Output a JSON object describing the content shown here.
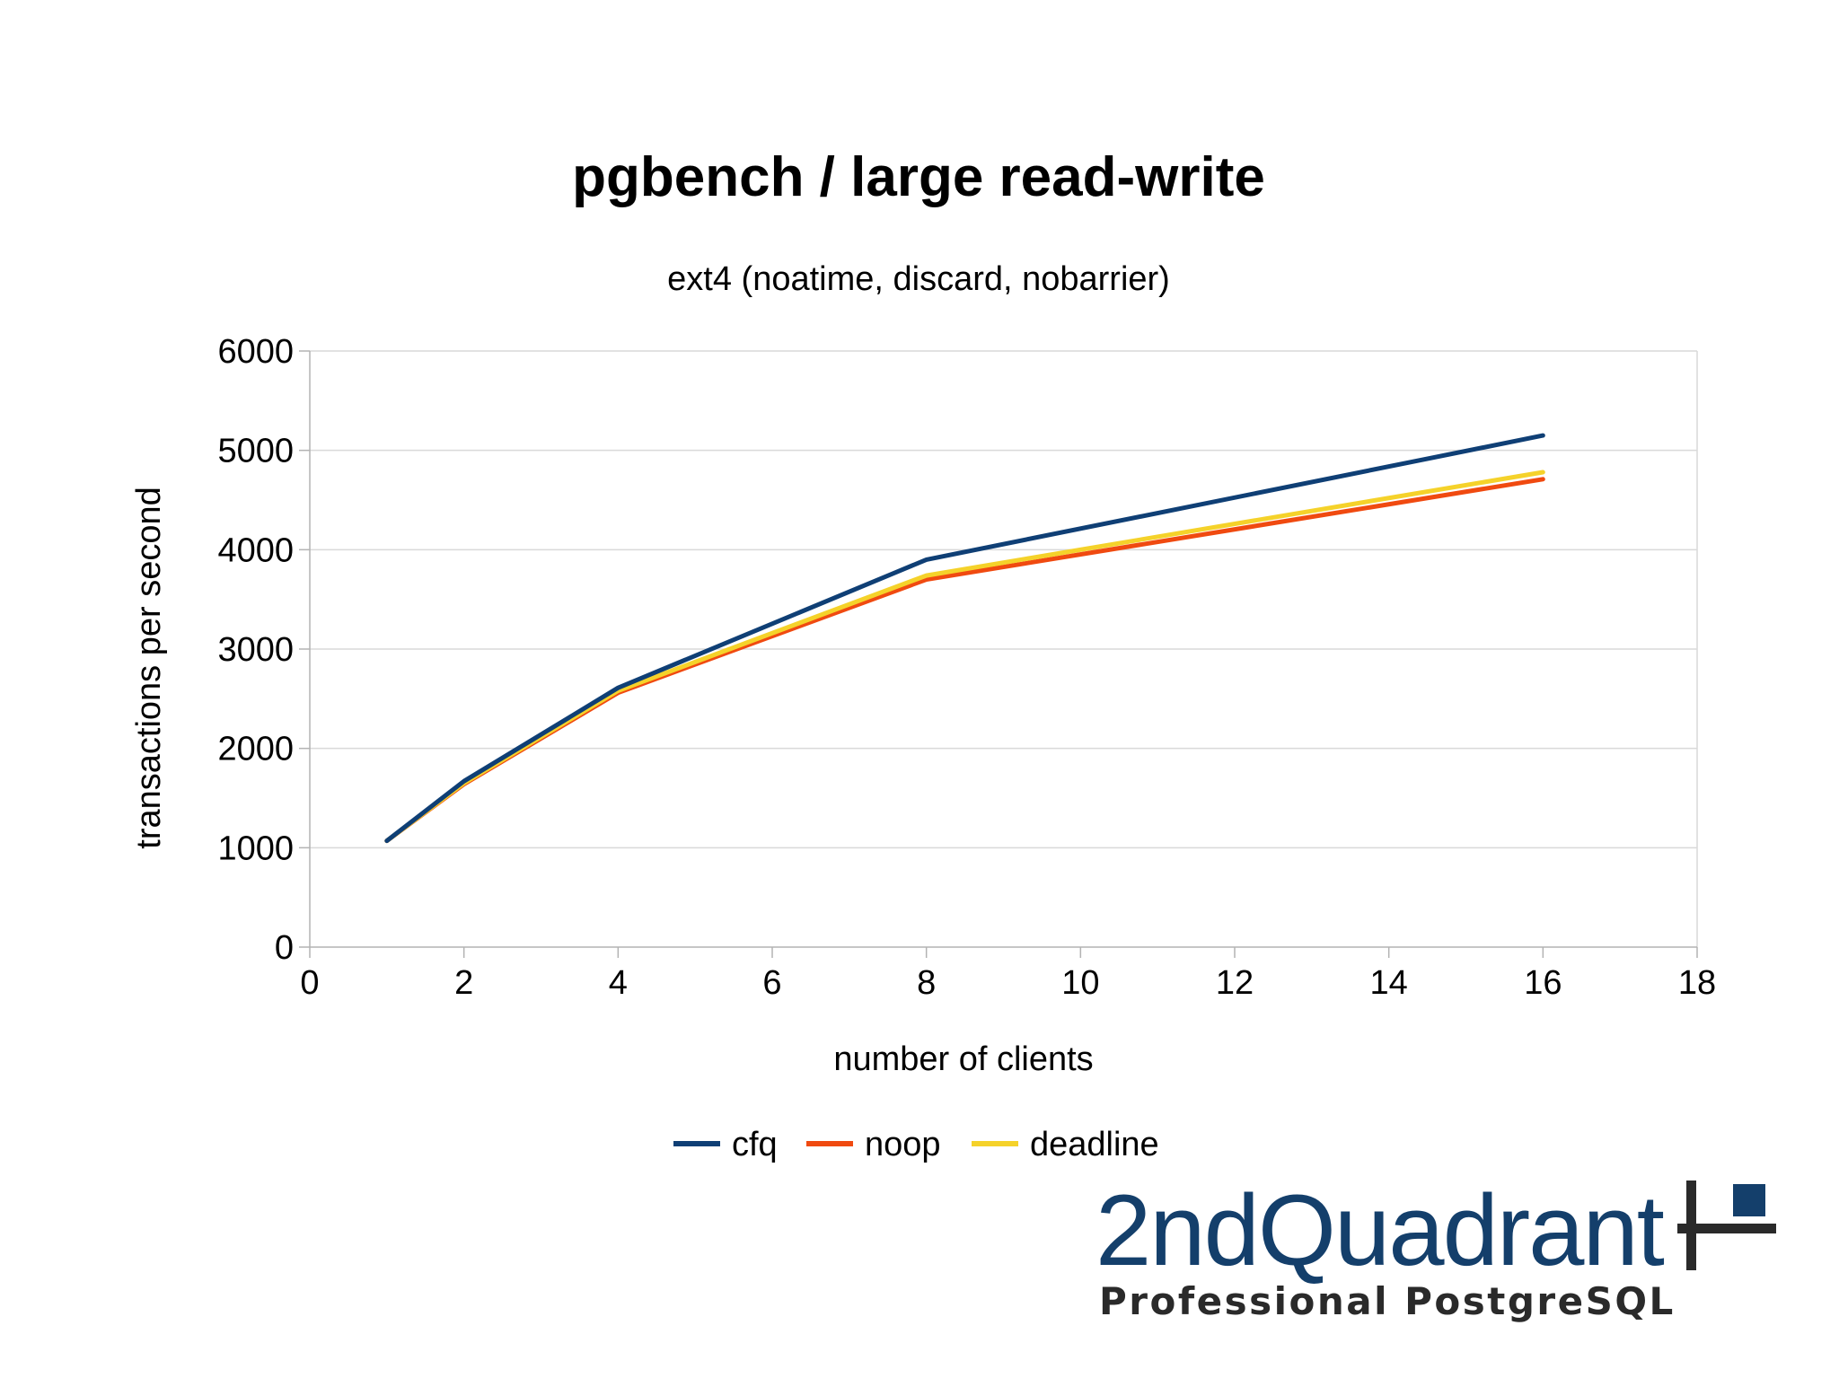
{
  "chart_data": {
    "type": "line",
    "title": "pgbench / large read-write",
    "subtitle": "ext4 (noatime, discard, nobarrier)",
    "xlabel": "number of clients",
    "ylabel": "transactions per second",
    "xlim": [
      0,
      18
    ],
    "ylim": [
      0,
      6000
    ],
    "xticks": [
      0,
      2,
      4,
      6,
      8,
      10,
      12,
      14,
      16,
      18
    ],
    "yticks": [
      0,
      1000,
      2000,
      3000,
      4000,
      5000,
      6000
    ],
    "grid": true,
    "legend_position": "bottom",
    "x": [
      1,
      2,
      4,
      8,
      16
    ],
    "series": [
      {
        "name": "cfq",
        "color": "#0f3f75",
        "values": [
          1070,
          1670,
          2610,
          3900,
          5150
        ]
      },
      {
        "name": "noop",
        "color": "#f04a10",
        "values": [
          1070,
          1640,
          2560,
          3700,
          4710
        ]
      },
      {
        "name": "deadline",
        "color": "#f5d22a",
        "values": [
          1070,
          1650,
          2580,
          3740,
          4780
        ]
      }
    ]
  },
  "logo": {
    "wordmark": "2ndQuadrant",
    "tagline": "Professional PostgreSQL",
    "colors": {
      "primary": "#143f6b",
      "dark": "#2a2a2a"
    }
  }
}
